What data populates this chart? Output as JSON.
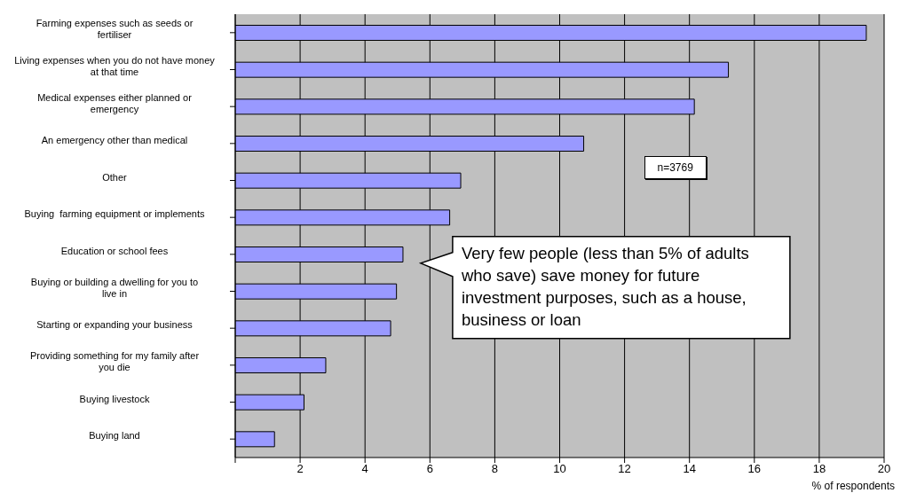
{
  "chart_data": {
    "type": "bar",
    "orientation": "horizontal",
    "xlabel": "% of respondents",
    "categories": [
      "Farming expenses such as seeds or fertiliser",
      "Living expenses when you do not have money at that time",
      "Medical expenses either planned or emergency",
      "An emergency other than medical",
      "Other",
      "Buying  farming equipment or implements",
      "Education or school fees",
      "Buying or building a dwelling for you to live in",
      "Starting or expanding your business",
      "Providing something for my family after you die",
      "Buying livestock",
      "Buying land"
    ],
    "values": [
      19.45,
      15.2,
      14.15,
      10.74,
      6.95,
      6.61,
      5.17,
      4.97,
      4.79,
      2.79,
      2.12,
      1.21
    ],
    "color": "#9999ff",
    "xlim": [
      0,
      20
    ],
    "xticks": [
      {
        "value": 0,
        "label": null
      },
      2,
      4,
      6,
      8,
      10,
      12,
      14,
      16,
      18,
      20
    ],
    "grid": "x",
    "annotations": [
      "n=3769",
      "Very few people (less than 5% of adults who save) save money for future investment purposes, such as a house, business or loan"
    ]
  }
}
